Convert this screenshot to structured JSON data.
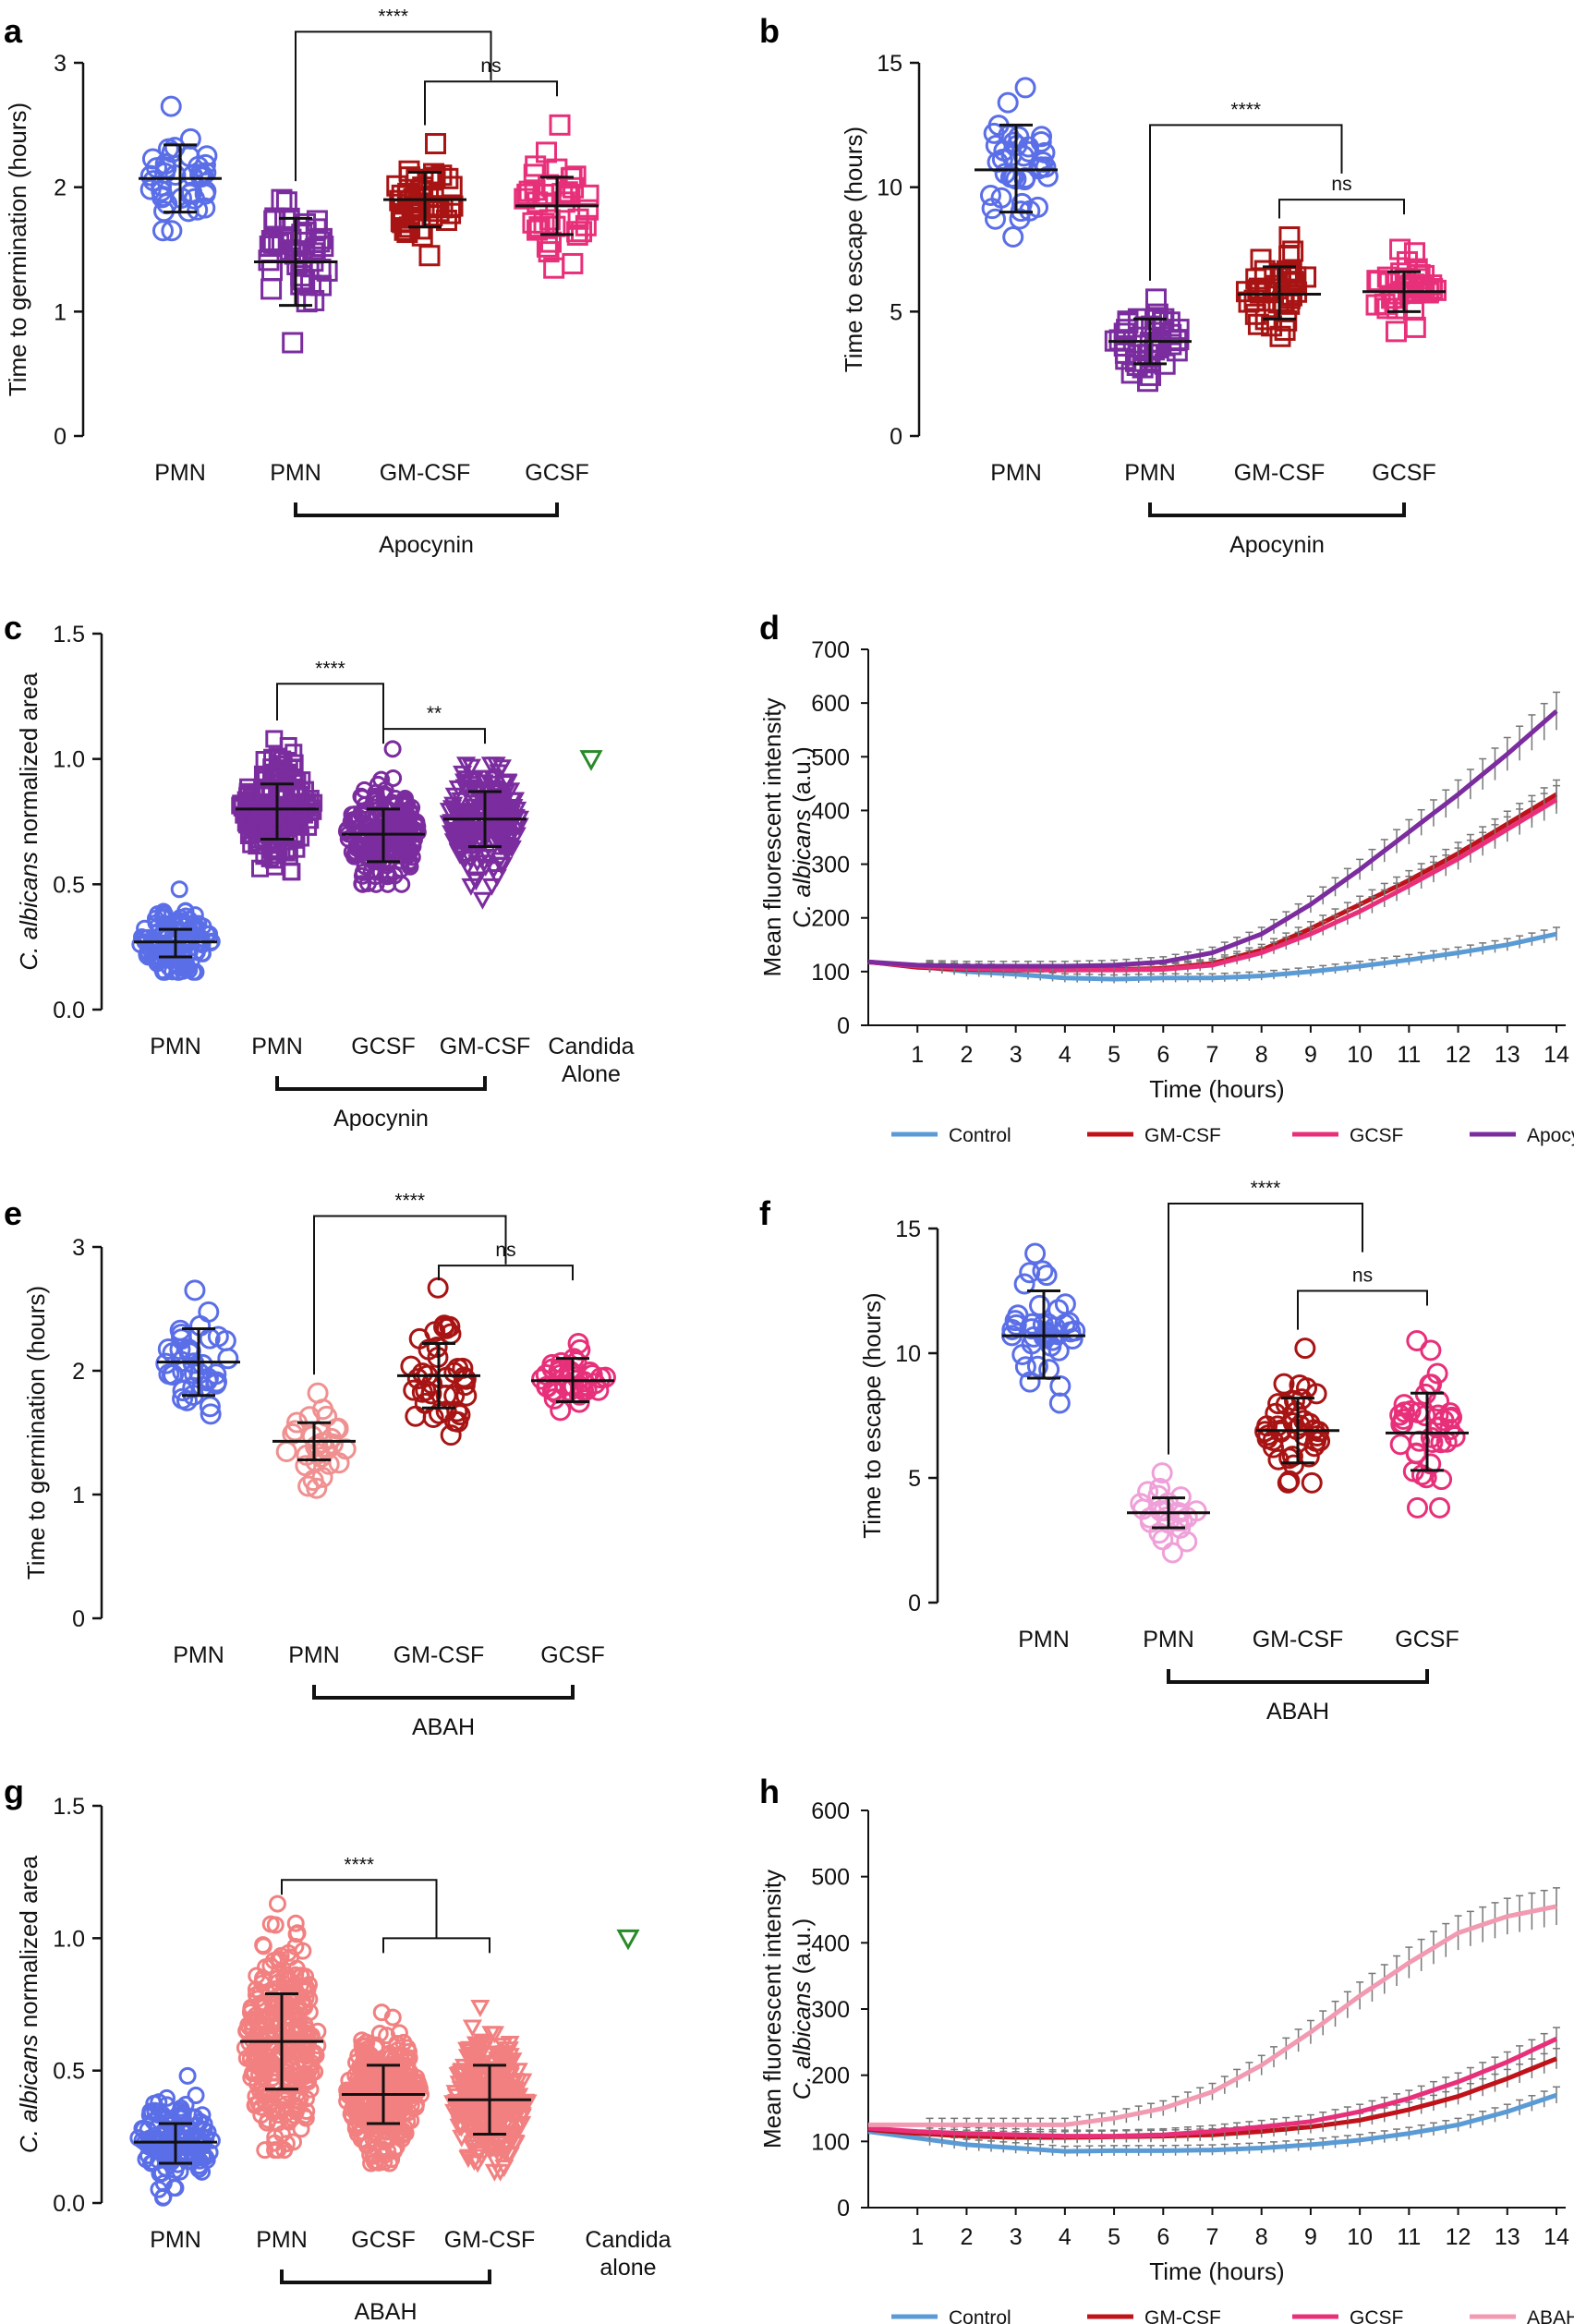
{
  "chart_data": [
    {
      "id": "a",
      "type": "scatter",
      "panel": "a",
      "ylabel": "Time to germination (hours)",
      "ylim": [
        0,
        3
      ],
      "yticks": [
        "0",
        "1",
        "2",
        "3"
      ],
      "categories": [
        "PMN",
        "PMN",
        "GM-CSF",
        "GCSF"
      ],
      "colors": [
        "#5a6ee8",
        "#7b2c9e",
        "#a81414",
        "#e8307a"
      ],
      "marker": "circle-open",
      "marker_by_group": [
        "circle",
        "square",
        "square",
        "square"
      ],
      "groups": [
        {
          "mean": 2.07,
          "sd_low": 1.8,
          "sd_high": 2.34,
          "min": 1.65,
          "max": 2.65,
          "n": 40
        },
        {
          "mean": 1.4,
          "sd_low": 1.05,
          "sd_high": 1.75,
          "min": 0.75,
          "max": 1.9,
          "n": 45
        },
        {
          "mean": 1.9,
          "sd_low": 1.68,
          "sd_high": 2.12,
          "min": 1.45,
          "max": 2.35,
          "n": 45
        },
        {
          "mean": 1.85,
          "sd_low": 1.62,
          "sd_high": 2.08,
          "min": 1.35,
          "max": 2.5,
          "n": 40
        }
      ],
      "bracket_label": "Apocynin",
      "bracket_from": 1,
      "bracket_to": 3,
      "comparisons": [
        {
          "label": "****",
          "from": 1,
          "to": 2.5,
          "y": 3.25
        },
        {
          "label": "ns",
          "from": 2,
          "to": 3,
          "y": 2.85
        }
      ]
    },
    {
      "id": "b",
      "type": "scatter",
      "panel": "b",
      "ylabel": "Time to escape (hours)",
      "ylim": [
        0,
        15
      ],
      "yticks": [
        "0",
        "5",
        "10",
        "15"
      ],
      "categories": [
        "PMN",
        "PMN",
        "GM-CSF",
        "GCSF"
      ],
      "colors": [
        "#5a6ee8",
        "#7b2c9e",
        "#a81414",
        "#e8307a"
      ],
      "marker_by_group": [
        "circle",
        "square",
        "square",
        "square"
      ],
      "groups": [
        {
          "mean": 10.7,
          "sd_low": 9.0,
          "sd_high": 12.5,
          "min": 8.0,
          "max": 14.0,
          "n": 40
        },
        {
          "mean": 3.8,
          "sd_low": 2.9,
          "sd_high": 4.7,
          "min": 2.2,
          "max": 5.5,
          "n": 40
        },
        {
          "mean": 5.7,
          "sd_low": 4.7,
          "sd_high": 6.8,
          "min": 4.0,
          "max": 8.0,
          "n": 40
        },
        {
          "mean": 5.8,
          "sd_low": 5.0,
          "sd_high": 6.6,
          "min": 4.2,
          "max": 7.5,
          "n": 40
        }
      ],
      "bracket_label": "Apocynin",
      "bracket_from": 1,
      "bracket_to": 3,
      "comparisons": [
        {
          "label": "****",
          "from": 1,
          "to": 2.5,
          "y": 12.5
        },
        {
          "label": "ns",
          "from": 2,
          "to": 3,
          "y": 9.5
        }
      ]
    },
    {
      "id": "c",
      "type": "scatter",
      "panel": "c",
      "ylabel_italic": "C. albicans",
      "ylabel_rest": " normalized area",
      "ylim": [
        0,
        1.5
      ],
      "yticks": [
        "0.0",
        "0.5",
        "1.0",
        "1.5"
      ],
      "categories": [
        "PMN",
        "PMN",
        "GCSF",
        "GM-CSF",
        "Candida",
        "Alone"
      ],
      "colors": [
        "#5a6ee8",
        "#7b2c9e",
        "#7b2c9e",
        "#7b2c9e",
        "#2a8a2a"
      ],
      "marker_by_group": [
        "circle",
        "square",
        "circle",
        "triangle",
        "triangle"
      ],
      "groups": [
        {
          "mean": 0.27,
          "sd_low": 0.21,
          "sd_high": 0.32,
          "min": 0.15,
          "max": 0.48,
          "n": 120
        },
        {
          "mean": 0.8,
          "sd_low": 0.68,
          "sd_high": 0.9,
          "min": 0.55,
          "max": 1.08,
          "n": 200
        },
        {
          "mean": 0.7,
          "sd_low": 0.59,
          "sd_high": 0.8,
          "min": 0.5,
          "max": 1.04,
          "n": 200
        },
        {
          "mean": 0.76,
          "sd_low": 0.65,
          "sd_high": 0.87,
          "min": 0.44,
          "max": 0.98,
          "n": 200
        },
        {
          "mean": 1.0,
          "sd_low": 1.0,
          "sd_high": 1.0,
          "min": 1.0,
          "max": 1.0,
          "n": 1
        }
      ],
      "bracket_label": "Apocynin",
      "bracket_from": 1,
      "bracket_to": 3,
      "comparisons": [
        {
          "label": "****",
          "from": 1,
          "to": 2,
          "y": 1.3
        },
        {
          "label": "**",
          "from": 2,
          "to": 3,
          "y": 1.12
        }
      ]
    },
    {
      "id": "d",
      "type": "line",
      "panel": "d",
      "ylabel_1": "Mean fluorescent intensity",
      "ylabel_italic": "C. albicans",
      "ylabel_rest": " (a.u.)",
      "xlabel": "Time (hours)",
      "xlim": [
        0,
        14
      ],
      "ylim": [
        0,
        700
      ],
      "xticks": [
        "1",
        "2",
        "3",
        "4",
        "5",
        "6",
        "7",
        "8",
        "9",
        "10",
        "11",
        "12",
        "13",
        "14"
      ],
      "yticks": [
        "0",
        "100",
        "200",
        "300",
        "400",
        "500",
        "600",
        "700"
      ],
      "x": [
        0,
        1,
        2,
        3,
        4,
        5,
        6,
        7,
        8,
        9,
        10,
        11,
        12,
        13,
        14
      ],
      "series": [
        {
          "name": "Control",
          "color": "#5b9bd5",
          "values": [
            118,
            110,
            100,
            95,
            88,
            86,
            88,
            88,
            92,
            100,
            110,
            122,
            135,
            150,
            170
          ]
        },
        {
          "name": "GM-CSF",
          "color": "#c0121a",
          "values": [
            118,
            108,
            104,
            103,
            103,
            104,
            106,
            115,
            140,
            180,
            225,
            270,
            320,
            375,
            430
          ]
        },
        {
          "name": "GCSF",
          "color": "#e8307a",
          "values": [
            118,
            110,
            106,
            104,
            103,
            103,
            104,
            112,
            135,
            170,
            212,
            260,
            310,
            365,
            420
          ]
        },
        {
          "name": "Apocynin",
          "color": "#7b2c9e",
          "values": [
            118,
            112,
            110,
            110,
            110,
            112,
            118,
            135,
            170,
            225,
            290,
            360,
            430,
            505,
            585
          ]
        }
      ]
    },
    {
      "id": "e",
      "type": "scatter",
      "panel": "e",
      "ylabel": "Time to germination (hours)",
      "ylim": [
        0,
        3
      ],
      "yticks": [
        "0",
        "1",
        "2",
        "3"
      ],
      "categories": [
        "PMN",
        "PMN",
        "GM-CSF",
        "GCSF"
      ],
      "colors": [
        "#5a6ee8",
        "#f09090",
        "#a81414",
        "#e8307a"
      ],
      "marker_by_group": [
        "circle",
        "circle",
        "circle",
        "circle"
      ],
      "groups": [
        {
          "mean": 2.07,
          "sd_low": 1.8,
          "sd_high": 2.34,
          "min": 1.65,
          "max": 2.65,
          "n": 40
        },
        {
          "mean": 1.43,
          "sd_low": 1.28,
          "sd_high": 1.58,
          "min": 1.05,
          "max": 1.82,
          "n": 30
        },
        {
          "mean": 1.96,
          "sd_low": 1.7,
          "sd_high": 2.22,
          "min": 1.48,
          "max": 2.67,
          "n": 40
        },
        {
          "mean": 1.92,
          "sd_low": 1.75,
          "sd_high": 2.1,
          "min": 1.68,
          "max": 2.22,
          "n": 40
        }
      ],
      "bracket_label": "ABAH",
      "bracket_from": 1,
      "bracket_to": 3,
      "comparisons": [
        {
          "label": "****",
          "from": 1,
          "to": 2.5,
          "y": 3.25
        },
        {
          "label": "ns",
          "from": 2,
          "to": 3,
          "y": 2.85
        }
      ]
    },
    {
      "id": "f",
      "type": "scatter",
      "panel": "f",
      "ylabel": "Time to escape (hours)",
      "ylim": [
        0,
        15
      ],
      "yticks": [
        "0",
        "5",
        "10",
        "15"
      ],
      "categories": [
        "PMN",
        "PMN",
        "GM-CSF",
        "GCSF"
      ],
      "colors": [
        "#5a6ee8",
        "#f0a0d8",
        "#a81414",
        "#e8307a"
      ],
      "marker_by_group": [
        "circle",
        "circle",
        "circle",
        "circle"
      ],
      "groups": [
        {
          "mean": 10.7,
          "sd_low": 9.0,
          "sd_high": 12.5,
          "min": 8.0,
          "max": 14.0,
          "n": 40
        },
        {
          "mean": 3.6,
          "sd_low": 3.0,
          "sd_high": 4.2,
          "min": 2.0,
          "max": 5.2,
          "n": 25
        },
        {
          "mean": 6.9,
          "sd_low": 5.6,
          "sd_high": 8.2,
          "min": 4.8,
          "max": 10.2,
          "n": 40
        },
        {
          "mean": 6.8,
          "sd_low": 5.3,
          "sd_high": 8.4,
          "min": 3.8,
          "max": 10.5,
          "n": 40
        }
      ],
      "bracket_label": "ABAH",
      "bracket_from": 1,
      "bracket_to": 3,
      "comparisons": [
        {
          "label": "****",
          "from": 1,
          "to": 2.5,
          "y": 16.0
        },
        {
          "label": "ns",
          "from": 2,
          "to": 3,
          "y": 12.5
        }
      ]
    },
    {
      "id": "g",
      "type": "scatter",
      "panel": "g",
      "ylabel_italic": "C. albicans",
      "ylabel_rest": " normalized area",
      "ylim": [
        0,
        1.5
      ],
      "yticks": [
        "0.0",
        "0.5",
        "1.0",
        "1.5"
      ],
      "categories": [
        "PMN",
        "PMN",
        "GCSF",
        "GM-CSF",
        "Candida",
        "alone"
      ],
      "colors": [
        "#5a6ee8",
        "#f28080",
        "#f28080",
        "#f28080",
        "#2a8a2a"
      ],
      "marker_by_group": [
        "circle",
        "circle",
        "circle",
        "triangle",
        "triangle"
      ],
      "groups": [
        {
          "mean": 0.23,
          "sd_low": 0.15,
          "sd_high": 0.3,
          "min": 0.02,
          "max": 0.48,
          "n": 150
        },
        {
          "mean": 0.61,
          "sd_low": 0.43,
          "sd_high": 0.79,
          "min": 0.2,
          "max": 1.13,
          "n": 300
        },
        {
          "mean": 0.41,
          "sd_low": 0.3,
          "sd_high": 0.52,
          "min": 0.15,
          "max": 0.72,
          "n": 300
        },
        {
          "mean": 0.39,
          "sd_low": 0.26,
          "sd_high": 0.52,
          "min": 0.12,
          "max": 0.74,
          "n": 300
        },
        {
          "mean": 1.0,
          "sd_low": 1.0,
          "sd_high": 1.0,
          "min": 1.0,
          "max": 1.0,
          "n": 1
        }
      ],
      "bracket_label": "ABAH",
      "bracket_from": 1,
      "bracket_to": 3,
      "comparisons": [
        {
          "label": "****",
          "from": 1,
          "to": 2.5,
          "y": 1.22,
          "inner_y": 1.0
        }
      ]
    },
    {
      "id": "h",
      "type": "line",
      "panel": "h",
      "ylabel_1": "Mean fluorescent intensity",
      "ylabel_italic": "C. albicans",
      "ylabel_rest": " (a.u.)",
      "xlabel": "Time (hours)",
      "xlim": [
        0,
        14
      ],
      "ylim": [
        0,
        600
      ],
      "xticks": [
        "1",
        "2",
        "3",
        "4",
        "5",
        "6",
        "7",
        "8",
        "9",
        "10",
        "11",
        "12",
        "13",
        "14"
      ],
      "yticks": [
        "0",
        "100",
        "200",
        "300",
        "400",
        "500",
        "600"
      ],
      "x": [
        0,
        1,
        2,
        3,
        4,
        5,
        6,
        7,
        8,
        9,
        10,
        11,
        12,
        13,
        14
      ],
      "series": [
        {
          "name": "Control",
          "color": "#5b9bd5",
          "values": [
            115,
            105,
            95,
            90,
            85,
            86,
            86,
            87,
            90,
            95,
            102,
            112,
            125,
            145,
            170
          ]
        },
        {
          "name": "GM-CSF",
          "color": "#c0121a",
          "values": [
            118,
            112,
            108,
            106,
            106,
            107,
            108,
            110,
            115,
            122,
            132,
            148,
            168,
            195,
            225
          ]
        },
        {
          "name": "GCSF",
          "color": "#e8307a",
          "values": [
            120,
            115,
            112,
            110,
            108,
            108,
            110,
            115,
            122,
            130,
            145,
            165,
            190,
            220,
            255
          ]
        },
        {
          "name": "ABAH",
          "color": "#f29ab2",
          "values": [
            125,
            125,
            125,
            125,
            125,
            135,
            150,
            175,
            215,
            265,
            320,
            370,
            415,
            440,
            455
          ]
        }
      ]
    }
  ]
}
